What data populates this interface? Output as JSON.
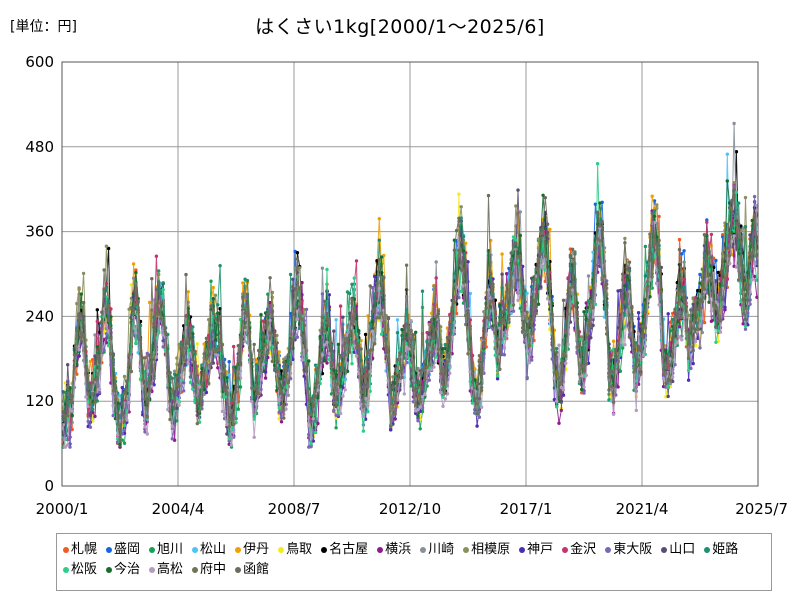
{
  "unit_label": "[単位：円]",
  "chart_data": {
    "type": "line",
    "title": "はくさい1kg[2000/1～2025/6]",
    "xlabel": "",
    "ylabel": "",
    "x_range": [
      "2000/1",
      "2025/7"
    ],
    "ylim": [
      0,
      600
    ],
    "y_ticks": [
      0,
      120,
      240,
      360,
      480,
      600
    ],
    "x_tick_labels": [
      "2000/1",
      "2004/4",
      "2008/7",
      "2012/10",
      "2017/1",
      "2021/4",
      "2025/7"
    ],
    "grid": true,
    "legend_position": "bottom",
    "x_step": "1 month",
    "trend_2000_01_to_2025_06": [
      88,
      96,
      108,
      100,
      115,
      160,
      198,
      225,
      230,
      208,
      165,
      128,
      118,
      125,
      145,
      165,
      175,
      212,
      238,
      245,
      230,
      198,
      152,
      122,
      90,
      82,
      92,
      108,
      125,
      158,
      205,
      248,
      258,
      232,
      182,
      140,
      118,
      125,
      142,
      165,
      185,
      220,
      245,
      255,
      238,
      205,
      160,
      128,
      105,
      112,
      130,
      148,
      168,
      185,
      205,
      215,
      200,
      178,
      150,
      128,
      125,
      138,
      152,
      168,
      180,
      198,
      215,
      222,
      210,
      188,
      160,
      140,
      110,
      96,
      92,
      102,
      122,
      155,
      185,
      220,
      245,
      235,
      205,
      150,
      115,
      128,
      150,
      175,
      188,
      198,
      215,
      230,
      215,
      185,
      160,
      140,
      125,
      132,
      148,
      168,
      188,
      215,
      248,
      270,
      255,
      225,
      190,
      160,
      98,
      82,
      95,
      115,
      140,
      165,
      190,
      210,
      220,
      205,
      175,
      140,
      118,
      125,
      140,
      160,
      175,
      192,
      212,
      228,
      230,
      212,
      180,
      150,
      125,
      130,
      150,
      180,
      205,
      232,
      258,
      275,
      268,
      238,
      195,
      160,
      110,
      115,
      125,
      140,
      155,
      172,
      190,
      205,
      200,
      185,
      160,
      130,
      115,
      122,
      138,
      155,
      168,
      182,
      198,
      212,
      220,
      205,
      180,
      150,
      160,
      175,
      200,
      230,
      260,
      295,
      318,
      332,
      310,
      280,
      230,
      190,
      150,
      128,
      118,
      135,
      160,
      200,
      240,
      270,
      278,
      262,
      220,
      185,
      210,
      225,
      238,
      250,
      262,
      285,
      310,
      330,
      320,
      295,
      260,
      230,
      200,
      212,
      230,
      255,
      280,
      300,
      325,
      345,
      335,
      305,
      262,
      215,
      165,
      142,
      138,
      148,
      175,
      210,
      250,
      275,
      282,
      265,
      225,
      185,
      165,
      178,
      198,
      220,
      245,
      275,
      310,
      340,
      355,
      330,
      285,
      240,
      165,
      150,
      148,
      160,
      180,
      210,
      240,
      265,
      270,
      255,
      220,
      180,
      160,
      168,
      185,
      210,
      235,
      268,
      305,
      340,
      355,
      335,
      290,
      245,
      175,
      160,
      158,
      168,
      185,
      210,
      240,
      262,
      268,
      255,
      225,
      195,
      210,
      218,
      228,
      240,
      252,
      268,
      288,
      305,
      300,
      285,
      262,
      245,
      245,
      262,
      285,
      305,
      325,
      345,
      365,
      378,
      365,
      340,
      305,
      275,
      260,
      275,
      300,
      330,
      360,
      340
    ]
  },
  "legend": [
    {
      "name": "札幌",
      "color": "#f05a24"
    },
    {
      "name": "盛岡",
      "color": "#1564e0"
    },
    {
      "name": "旭川",
      "color": "#18a058"
    },
    {
      "name": "松山",
      "color": "#4fc3f7"
    },
    {
      "name": "伊丹",
      "color": "#f0a000"
    },
    {
      "name": "鳥取",
      "color": "#f5ea20"
    },
    {
      "name": "名古屋",
      "color": "#000000"
    },
    {
      "name": "横浜",
      "color": "#8e1a8e"
    },
    {
      "name": "川崎",
      "color": "#8a9099"
    },
    {
      "name": "相模原",
      "color": "#8a8f5c"
    },
    {
      "name": "神戸",
      "color": "#4b2db8"
    },
    {
      "name": "金沢",
      "color": "#c2336f"
    },
    {
      "name": "東大阪",
      "color": "#7b68b5"
    },
    {
      "name": "山口",
      "color": "#5a4c78"
    },
    {
      "name": "姫路",
      "color": "#1e9070"
    },
    {
      "name": "松阪",
      "color": "#2dcf88"
    },
    {
      "name": "今治",
      "color": "#1a6b2e"
    },
    {
      "name": "高松",
      "color": "#b49cc0"
    },
    {
      "name": "府中",
      "color": "#737355"
    },
    {
      "name": "函館",
      "color": "#6b6b5e"
    }
  ]
}
